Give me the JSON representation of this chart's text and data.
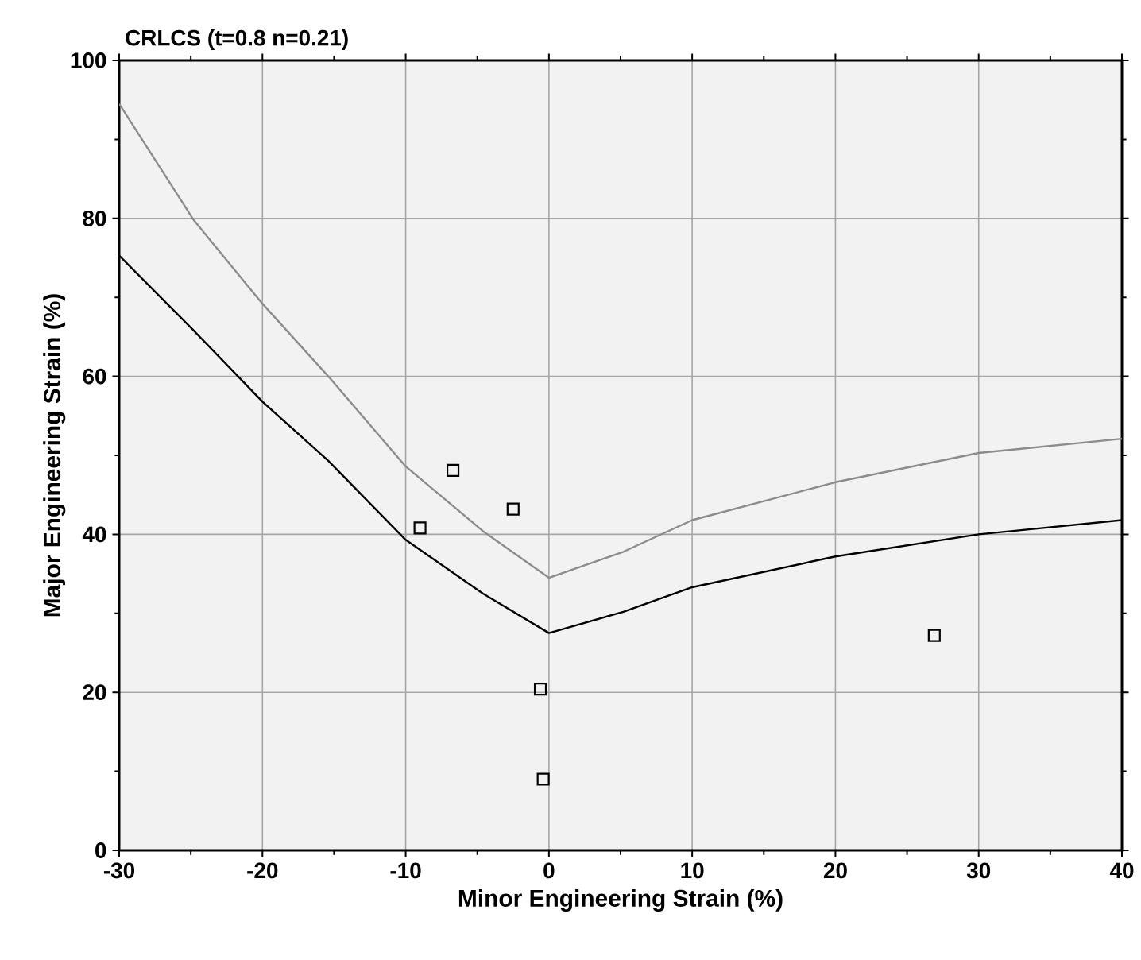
{
  "chart_data": {
    "type": "line",
    "title": "CRLCS (t=0.8 n=0.21)",
    "xlabel": "Minor Engineering Strain (%)",
    "ylabel": "Major Engineering Strain (%)",
    "xlim": [
      -30,
      40
    ],
    "ylim": [
      0,
      100
    ],
    "xticks": [
      -30,
      -20,
      -10,
      0,
      10,
      20,
      30,
      40
    ],
    "yticks": [
      0,
      20,
      40,
      60,
      80,
      100
    ],
    "grid": true,
    "series": [
      {
        "type": "line",
        "color": "#8c8c8c",
        "x": [
          -30,
          -24.8,
          -20,
          -15.4,
          -10,
          -4.6,
          0,
          5.2,
          10,
          20,
          30,
          40
        ],
        "values": [
          94.5,
          79.8,
          69.2,
          60,
          48.6,
          40.4,
          34.5,
          37.8,
          41.8,
          46.6,
          50.3,
          52.1
        ]
      },
      {
        "type": "line",
        "color": "#000000",
        "x": [
          -30,
          -24.8,
          -20,
          -15.4,
          -10,
          -4.6,
          0,
          5.2,
          10,
          20,
          30,
          40
        ],
        "values": [
          75.3,
          65.8,
          56.8,
          49.3,
          39.3,
          32.5,
          27.5,
          30.2,
          33.3,
          37.2,
          40.0,
          41.8
        ]
      },
      {
        "type": "scatter",
        "marker": "square",
        "color": "#000000",
        "x": [
          -9.0,
          -6.7,
          -2.5,
          -0.6,
          -0.4,
          26.9
        ],
        "values": [
          40.8,
          48.1,
          43.2,
          20.4,
          9.0,
          27.2
        ]
      }
    ]
  }
}
